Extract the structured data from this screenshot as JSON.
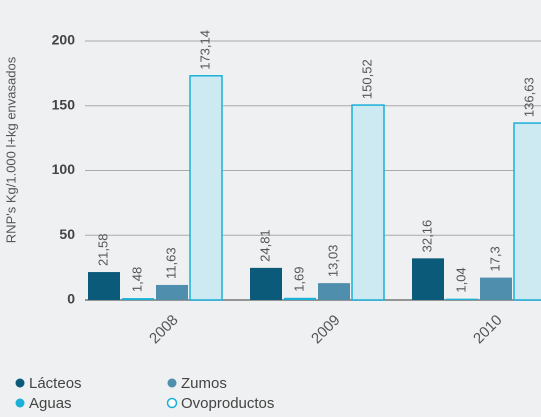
{
  "chart_data": {
    "type": "bar",
    "ylabel": "RNP's Kg/1.000 l+kg envasados",
    "categories": [
      "2008",
      "2009",
      "2010"
    ],
    "series": [
      {
        "name": "Lácteos",
        "color": "#0b5a7a",
        "values": [
          21.58,
          24.81,
          32.16
        ],
        "value_labels": [
          "21,58",
          "24,81",
          "32,16"
        ]
      },
      {
        "name": "Aguas",
        "color": "#1ab0d8",
        "values": [
          1.48,
          1.69,
          1.04
        ],
        "value_labels": [
          "1,48",
          "1,69",
          "1,04"
        ]
      },
      {
        "name": "Zumos",
        "color": "#4f8ead",
        "values": [
          11.63,
          13.03,
          17.3
        ],
        "value_labels": [
          "11,63",
          "13,03",
          "17,3"
        ]
      },
      {
        "name": "Ovoproductos",
        "color": "#cdeaf3",
        "edgecolor": "#1ab0d8",
        "values": [
          173.14,
          150.52,
          136.63
        ],
        "value_labels": [
          "173,14",
          "150,52",
          "136,63"
        ]
      }
    ],
    "ylim": [
      0,
      200
    ],
    "yticks": [
      0,
      50,
      100,
      150,
      200
    ],
    "grid": true
  }
}
